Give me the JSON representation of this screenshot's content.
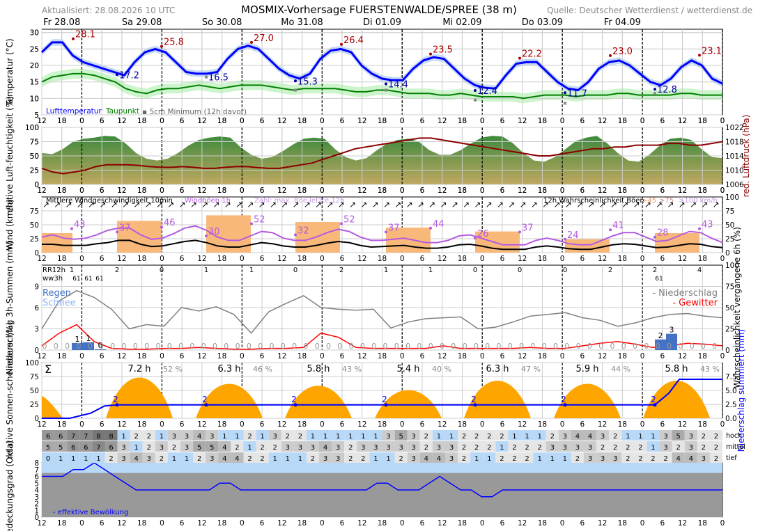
{
  "header": {
    "title": "MOSMIX-Vorhersage FUERSTENWALDE/SPREE (38 m)",
    "updated": "Aktualisiert: 28.08.2026 10 UTC",
    "source": "Quelle: Deutscher Wetterdienst / wetterdienst.de"
  },
  "days": [
    "Fr 28.08",
    "Sa 29.08",
    "So 30.08",
    "Mo 31.08",
    "Di 01.09",
    "Mi 02.09",
    "Do 03.09",
    "Fr 04.09"
  ],
  "hour_ticks": [
    "12",
    "18",
    "0",
    "6",
    "12",
    "18",
    "0",
    "6",
    "12",
    "18",
    "0",
    "6",
    "12",
    "18",
    "0",
    "6",
    "12",
    "18",
    "0",
    "6",
    "12",
    "18",
    "0",
    "6",
    "12",
    "18",
    "0",
    "6",
    "12",
    "18",
    "0",
    "6",
    "12",
    "18",
    "0"
  ],
  "colors": {
    "temp": "#0000ff",
    "dew": "#008000",
    "max_label": "#aa0000",
    "min_label": "#000099",
    "pressure": "#8b0000",
    "wind": "#000000",
    "gust": "#b45ae0",
    "rain": "#4472c4",
    "thunder": "#ff0000",
    "sun": "#ffa500"
  },
  "chart_data": [
    {
      "type": "line",
      "id": "temperature",
      "ylabel": "Temperatur (°C)",
      "ylim": [
        5,
        31
      ],
      "yticks": [
        "5",
        "10",
        "15",
        "20",
        "25",
        "30"
      ],
      "legend": [
        "Lufttemperatur",
        "Taupunkt",
        "5cm Minimum (12h davor)"
      ],
      "temp": [
        24,
        27,
        27,
        23,
        21,
        20,
        19,
        18,
        17,
        21,
        24,
        25,
        24,
        21,
        18,
        17.5,
        17.5,
        18,
        22,
        25,
        26,
        25,
        22,
        19,
        17,
        16,
        17.5,
        22,
        24.5,
        25,
        24,
        20,
        17.5,
        16,
        15.5,
        15.5,
        19,
        21.5,
        22.5,
        22,
        19,
        16,
        14,
        13.2,
        13,
        17,
        20.5,
        21,
        21,
        18,
        15,
        13,
        12.5,
        15,
        19,
        21,
        21.5,
        20,
        17.5,
        15,
        14,
        16,
        19.5,
        21.5,
        20,
        16,
        14.5
      ],
      "dew": [
        15,
        16.5,
        17,
        17.5,
        17.5,
        17,
        16,
        15,
        13,
        12,
        11.5,
        12.5,
        13,
        13,
        13.5,
        14,
        13.5,
        13,
        13.5,
        14,
        14,
        14,
        13.5,
        13,
        12.5,
        13,
        13,
        13,
        13,
        12.5,
        12,
        12,
        12.5,
        12.5,
        12,
        11.5,
        11.5,
        11.5,
        11,
        11,
        11.5,
        11,
        10.5,
        10.5,
        10.5,
        10.5,
        10,
        10.5,
        11,
        11,
        11,
        10.5,
        11,
        11,
        11,
        11.5,
        11.5,
        11,
        11,
        11,
        11,
        11.5,
        11.5,
        11,
        11,
        11
      ],
      "max_labels": [
        "28.1",
        "25.8",
        "27.0",
        "26.4",
        "23.5",
        "22.2",
        "23.0",
        "23.1"
      ],
      "min_labels": [
        "17.2",
        "16.5",
        "15.3",
        "14.4",
        "12.4",
        "11.7",
        "12.8"
      ],
      "ground_min": [
        "16.5",
        "12.5",
        "12.5",
        "9.5",
        "8.5",
        "11.5"
      ]
    },
    {
      "type": "area",
      "id": "humidity_pressure",
      "ylabel": "relative Luft-feuchtigkeit (%)",
      "y2label": "red. Luftdruck (hPa)",
      "ylim": [
        0,
        100
      ],
      "y2lim": [
        1006,
        1022
      ],
      "yticks": [
        "0",
        "25",
        "50",
        "75",
        "100"
      ],
      "y2ticks": [
        "1006",
        "1010",
        "1014",
        "1018",
        "1022"
      ],
      "humidity": [
        55,
        53,
        62,
        75,
        80,
        82,
        85,
        84,
        72,
        55,
        45,
        42,
        45,
        55,
        68,
        78,
        82,
        84,
        82,
        65,
        52,
        45,
        48,
        58,
        70,
        80,
        82,
        80,
        62,
        48,
        42,
        46,
        60,
        72,
        78,
        80,
        75,
        60,
        52,
        52,
        60,
        72,
        82,
        85,
        84,
        72,
        55,
        42,
        40,
        48,
        62,
        76,
        82,
        85,
        72,
        55,
        42,
        40,
        52,
        68,
        80,
        82,
        78,
        62,
        48,
        46
      ],
      "pressure": [
        1010.5,
        1009.5,
        1009,
        1009.5,
        1010,
        1011,
        1011.5,
        1011.5,
        1011.5,
        1011.3,
        1011,
        1010.8,
        1010.8,
        1011,
        1010.8,
        1010.5,
        1010.5,
        1010.8,
        1011,
        1011,
        1010.7,
        1010.5,
        1010.5,
        1011,
        1011.5,
        1012,
        1013,
        1014,
        1015,
        1016,
        1016.5,
        1017,
        1017.5,
        1018,
        1018.5,
        1019,
        1019,
        1018.5,
        1018,
        1017.5,
        1017,
        1016.5,
        1016,
        1015.5,
        1015,
        1014.5,
        1014,
        1014,
        1014.5,
        1015,
        1015.5,
        1016,
        1016,
        1016.5,
        1016.5,
        1017,
        1017,
        1017,
        1017.5,
        1017.5,
        1017,
        1017,
        1017.5,
        1018
      ]
    },
    {
      "type": "line",
      "id": "wind",
      "ylabel": "Wind (km/h)",
      "ylim": [
        0,
        100
      ],
      "yticks": [
        "0",
        "25",
        "50",
        "75"
      ],
      "y2ticks": [
        "0",
        "25",
        "50",
        "75",
        "100"
      ],
      "legend": [
        "Mittlere Windgeschwindigkeit 10min",
        "Windböen 1h",
        "Zahl: max. Böe letzte 12h"
      ],
      "prob_label": "12h Wahrscheinlichkeit Böen",
      "prob_legend": [
        ">45",
        ">75",
        ">100 km/h"
      ],
      "mean": [
        15,
        15,
        13,
        13,
        13,
        16,
        18,
        22,
        22,
        15,
        11,
        12,
        16,
        20,
        22,
        18,
        12,
        10,
        10,
        14,
        18,
        16,
        12,
        10,
        10,
        13,
        17,
        20,
        18,
        13,
        10,
        11,
        12,
        13,
        10,
        8,
        8,
        10,
        14,
        15,
        12,
        8,
        6,
        6,
        6,
        10,
        12,
        10,
        7,
        6,
        6,
        10,
        14,
        16,
        15,
        12,
        9,
        10,
        13,
        16,
        15,
        11,
        9
      ],
      "gust": [
        28,
        32,
        26,
        24,
        26,
        32,
        40,
        44,
        44,
        32,
        24,
        26,
        34,
        44,
        48,
        40,
        28,
        22,
        22,
        30,
        38,
        36,
        26,
        22,
        22,
        28,
        36,
        42,
        38,
        28,
        22,
        22,
        24,
        26,
        22,
        18,
        18,
        22,
        30,
        32,
        26,
        20,
        14,
        14,
        14,
        22,
        26,
        22,
        16,
        14,
        14,
        22,
        30,
        36,
        36,
        28,
        20,
        22,
        30,
        38,
        36,
        26,
        18
      ],
      "max_gust_labels": [
        "43",
        "37",
        "46",
        "30",
        "52",
        "32",
        "52",
        "37",
        "44",
        "26",
        "37",
        "24",
        "41",
        "28",
        "43"
      ],
      "prob45": [
        35,
        57,
        67,
        55,
        45,
        38,
        24,
        35,
        38
      ]
    },
    {
      "type": "bar",
      "id": "precipitation",
      "ylabel": "Niederschlag 3h-Summen (mm)",
      "y2label": "Wahrscheinlichkeit vergangene 6h (%)",
      "ylim": [
        0,
        12
      ],
      "yticks": [
        "0",
        "3",
        "6",
        "9"
      ],
      "y2ticks": [
        "0",
        "25",
        "50",
        "75",
        "100"
      ],
      "legend": [
        "Regen",
        "Schnee"
      ],
      "legend_right": [
        "- Niederschlag",
        "- Gewitter"
      ],
      "rr12h_label": "RR12h",
      "ww3h_label": "ww3h",
      "rr12h_values": [
        "1",
        "2",
        "0",
        "1",
        "1",
        "0",
        "2",
        "1",
        "1",
        "0",
        "0",
        "0",
        "2",
        "2",
        "4"
      ],
      "ww3h_values": [
        "61",
        "61",
        "61",
        "61"
      ],
      "bars": [
        {
          "x": "Fr 28.08 21",
          "value": 1
        },
        {
          "x": "Sa 29.08 00",
          "value": 1.1
        },
        {
          "x": "Sa 29.08 03",
          "value": 0.1
        },
        {
          "x": "Fr 04.09 06",
          "value": 1.5
        },
        {
          "x": "Fr 04.09 09",
          "value": 2.3
        }
      ],
      "bar_labels": [
        "1",
        "1",
        "0",
        "2",
        "3"
      ],
      "precip_prob": [
        25,
        58,
        70,
        62,
        48,
        25,
        30,
        28,
        50,
        46,
        51,
        42,
        20,
        45,
        55,
        64,
        50,
        48,
        47,
        48,
        26,
        33,
        37,
        38,
        39,
        25,
        27,
        33,
        40,
        42,
        44,
        38,
        35,
        28,
        32,
        38,
        42,
        43,
        40,
        38
      ],
      "thunder_prob": [
        5,
        20,
        30,
        10,
        2,
        1,
        1,
        2,
        2,
        3,
        2,
        1,
        1,
        2,
        2,
        3,
        20,
        15,
        3,
        2,
        2,
        2,
        2,
        5,
        2,
        2,
        2,
        2,
        3,
        2,
        2,
        5,
        8,
        10,
        7,
        3,
        5,
        8,
        7,
        5
      ]
    },
    {
      "type": "area",
      "id": "sunshine",
      "ylabel": "relative Sonnen-scheindauer (%)",
      "y2label": "Niederschlag summiert (mm)",
      "ylim": [
        0,
        100
      ],
      "yticks": [
        "0",
        "25",
        "50",
        "75",
        "100"
      ],
      "y2ticks": [
        "0.0",
        "2.5",
        "5.0",
        "7.5"
      ],
      "sum_symbol": "Σ",
      "daily_hours": [
        "7.2 h",
        "6.3 h",
        "5.8 h",
        "5.4 h",
        "6.3 h",
        "5.9 h",
        "5.8 h"
      ],
      "daily_pct": [
        "52 %",
        "46 %",
        "43 %",
        "40 %",
        "47 %",
        "44 %",
        "43 %"
      ],
      "sun_peak": [
        65,
        55,
        52,
        45,
        60,
        55,
        60
      ],
      "cum_precip_labels": [
        "2",
        "2",
        "2",
        "2",
        "2",
        "2",
        "2"
      ]
    },
    {
      "type": "heatmap",
      "id": "cloud_cover",
      "ylabel": "Bedeckungsgrad (Okta)",
      "ylim": [
        0,
        8
      ],
      "yticks": [
        "0",
        "1",
        "2",
        "3",
        "4",
        "5",
        "6",
        "7",
        "8"
      ],
      "legend": "- effektive Bewölkung",
      "row_labels": [
        "hoch",
        "mittel",
        "tief"
      ],
      "hoch": [
        "6",
        "6",
        "7",
        "7",
        "8",
        "8",
        "1",
        "2",
        "2",
        "1",
        "3",
        "3",
        "4",
        "3",
        "1",
        "1",
        "2",
        "1",
        "3",
        "2",
        "2",
        "1",
        "1",
        "1",
        "1",
        "1",
        "1",
        "3",
        "5",
        "3",
        "2",
        "1",
        "1",
        "2",
        "2",
        "2",
        "2",
        "1",
        "1",
        "1",
        "2",
        "3",
        "4",
        "4",
        "3",
        "2",
        "1",
        "1",
        "1",
        "3",
        "5",
        "3",
        "2",
        "2"
      ],
      "mittel": [
        "5",
        "5",
        "6",
        "6",
        "7",
        "6",
        "3",
        "1",
        "2",
        "3",
        "2",
        "3",
        "5",
        "5",
        "4",
        "2",
        "1",
        "2",
        "2",
        "3",
        "3",
        "3",
        "4",
        "3",
        "2",
        "3",
        "3",
        "3",
        "3",
        "3",
        "2",
        "3",
        "3",
        "2",
        "2",
        "2",
        "1",
        "2",
        "2",
        "2",
        "3",
        "3",
        "3",
        "3",
        "2",
        "2",
        "2",
        "2",
        "1",
        "3",
        "2",
        "3",
        "2",
        "2"
      ],
      "tief": [
        "0",
        "1",
        "1",
        "1",
        "1",
        "2",
        "3",
        "4",
        "3",
        "2",
        "1",
        "1",
        "2",
        "3",
        "4",
        "4",
        "2",
        "2",
        "1",
        "1",
        "1",
        "2",
        "3",
        "3",
        "2",
        "2",
        "1",
        "1",
        "2",
        "3",
        "4",
        "4",
        "3",
        "2",
        "1",
        "1",
        "2",
        "2",
        "2",
        "1",
        "1",
        "1",
        "2",
        "3",
        "3",
        "3",
        "2",
        "2",
        "2",
        "2",
        "4",
        "4",
        "3",
        "2"
      ],
      "effective": [
        6,
        6,
        6,
        7,
        7,
        8,
        7,
        6,
        5,
        4,
        4,
        4,
        4,
        4,
        4,
        4,
        4,
        5,
        5,
        4,
        4,
        4,
        4,
        4,
        4,
        4,
        4,
        4,
        4,
        4,
        4,
        4,
        5,
        5,
        4,
        4,
        4,
        5,
        6,
        5,
        4,
        4,
        3,
        3,
        4,
        4,
        4,
        4,
        4,
        4,
        4,
        4,
        4,
        4,
        4,
        4,
        4,
        4,
        4,
        4,
        4,
        4,
        4,
        4,
        4,
        4
      ]
    }
  ]
}
